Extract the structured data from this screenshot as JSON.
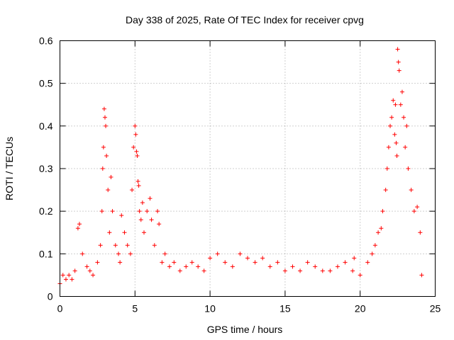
{
  "chart_data": {
    "type": "scatter",
    "title": "Day 338 of 2025, Rate Of TEC Index for receiver cpvg",
    "xlabel": "GPS time / hours",
    "ylabel": "ROTI / TECUs",
    "xlim": [
      0,
      25
    ],
    "ylim": [
      0,
      0.6
    ],
    "x_ticks": [
      "0",
      "5",
      "10",
      "15",
      "20",
      "25"
    ],
    "y_ticks": [
      "0",
      "0.1",
      "0.2",
      "0.3",
      "0.4",
      "0.5",
      "0.6"
    ],
    "grid": true,
    "marker": "+",
    "series": [
      {
        "name": "ROTI",
        "color": "#ff0000",
        "x": [
          0.0,
          0.2,
          0.4,
          0.6,
          0.8,
          1.0,
          1.2,
          1.3,
          1.5,
          1.8,
          2.0,
          2.2,
          2.5,
          2.7,
          2.8,
          2.85,
          2.9,
          2.95,
          3.0,
          3.05,
          3.1,
          3.2,
          3.3,
          3.4,
          3.5,
          3.7,
          3.9,
          4.0,
          4.1,
          4.3,
          4.5,
          4.7,
          4.8,
          4.9,
          5.0,
          5.05,
          5.1,
          5.15,
          5.2,
          5.25,
          5.3,
          5.4,
          5.5,
          5.6,
          5.8,
          6.0,
          6.1,
          6.3,
          6.5,
          6.6,
          6.8,
          7.0,
          7.3,
          7.6,
          8.0,
          8.4,
          8.8,
          9.2,
          9.6,
          10.0,
          10.5,
          11.0,
          11.5,
          12.0,
          12.5,
          13.0,
          13.5,
          14.0,
          14.5,
          15.0,
          15.5,
          16.0,
          16.5,
          17.0,
          17.5,
          18.0,
          18.5,
          19.0,
          19.5,
          19.6,
          20.0,
          20.5,
          20.8,
          21.0,
          21.2,
          21.4,
          21.5,
          21.7,
          21.8,
          21.9,
          22.0,
          22.1,
          22.2,
          22.3,
          22.35,
          22.4,
          22.45,
          22.5,
          22.55,
          22.6,
          22.7,
          22.8,
          22.9,
          23.0,
          23.1,
          23.2,
          23.4,
          23.6,
          23.8,
          24.0,
          24.1
        ],
        "y": [
          0.03,
          0.05,
          0.04,
          0.05,
          0.04,
          0.06,
          0.16,
          0.17,
          0.1,
          0.07,
          0.06,
          0.05,
          0.08,
          0.12,
          0.2,
          0.3,
          0.35,
          0.44,
          0.42,
          0.4,
          0.33,
          0.25,
          0.15,
          0.28,
          0.2,
          0.12,
          0.1,
          0.08,
          0.19,
          0.15,
          0.12,
          0.1,
          0.25,
          0.35,
          0.4,
          0.38,
          0.34,
          0.33,
          0.27,
          0.26,
          0.2,
          0.18,
          0.22,
          0.15,
          0.2,
          0.23,
          0.18,
          0.12,
          0.2,
          0.17,
          0.08,
          0.1,
          0.07,
          0.08,
          0.06,
          0.07,
          0.08,
          0.07,
          0.06,
          0.09,
          0.1,
          0.08,
          0.07,
          0.1,
          0.09,
          0.08,
          0.09,
          0.07,
          0.08,
          0.06,
          0.07,
          0.06,
          0.08,
          0.07,
          0.06,
          0.06,
          0.07,
          0.08,
          0.06,
          0.09,
          0.05,
          0.08,
          0.1,
          0.12,
          0.15,
          0.16,
          0.2,
          0.25,
          0.3,
          0.35,
          0.4,
          0.42,
          0.46,
          0.38,
          0.45,
          0.36,
          0.33,
          0.58,
          0.55,
          0.53,
          0.45,
          0.48,
          0.42,
          0.35,
          0.4,
          0.3,
          0.25,
          0.2,
          0.21,
          0.15,
          0.05
        ]
      }
    ]
  }
}
